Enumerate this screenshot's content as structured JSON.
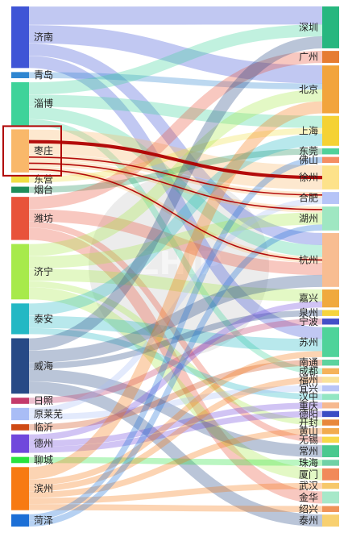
{
  "colors": {
    "highlight_link": "#b00000",
    "highlight_box": "#b00000",
    "watermark": "#b9b9b9"
  },
  "watermark": {
    "text": "ZHIP"
  },
  "sources": [
    {
      "name": "济南",
      "color": "#3f55d6"
    },
    {
      "name": "青岛",
      "color": "#2e86d1"
    },
    {
      "name": "淄博",
      "color": "#3fd39a"
    },
    {
      "name": "枣庄",
      "color": "#f9b86a"
    },
    {
      "name": "东营",
      "color": "#f0df44"
    },
    {
      "name": "烟台",
      "color": "#1e8e5a"
    },
    {
      "name": "潍坊",
      "color": "#e8533a"
    },
    {
      "name": "济宁",
      "color": "#a7ea4b"
    },
    {
      "name": "泰安",
      "color": "#23b8c4"
    },
    {
      "name": "威海",
      "color": "#274a86"
    },
    {
      "name": "日照",
      "color": "#c43a6b"
    },
    {
      "name": "原莱芜",
      "color": "#a9bdf6"
    },
    {
      "name": "临沂",
      "color": "#cf4a14"
    },
    {
      "name": "德州",
      "color": "#7048dc"
    },
    {
      "name": "聊城",
      "color": "#29e33e"
    },
    {
      "name": "滨州",
      "color": "#f77a12"
    },
    {
      "name": "菏泽",
      "color": "#1c6fd6"
    }
  ],
  "targets": [
    {
      "name": "深圳",
      "color": "#27b77f"
    },
    {
      "name": "广州",
      "color": "#e67c32"
    },
    {
      "name": "北京",
      "color": "#f2a43c"
    },
    {
      "name": "上海",
      "color": "#f5d234"
    },
    {
      "name": "东莞",
      "color": "#4fd19a"
    },
    {
      "name": "佛山",
      "color": "#f48d62"
    },
    {
      "name": "徐州",
      "color": "#fde28a"
    },
    {
      "name": "合肥",
      "color": "#b6c4f7"
    },
    {
      "name": "湖州",
      "color": "#9fe7c2"
    },
    {
      "name": "杭州",
      "color": "#f8bd92"
    },
    {
      "name": "嘉兴",
      "color": "#f0a93e"
    },
    {
      "name": "泉州",
      "color": "#f6d43e"
    },
    {
      "name": "宁波",
      "color": "#4450c8"
    },
    {
      "name": "苏州",
      "color": "#4fd39a"
    },
    {
      "name": "南通",
      "color": "#5dd39e"
    },
    {
      "name": "成都",
      "color": "#f5b35a"
    },
    {
      "name": "福州",
      "color": "#f9e39a"
    },
    {
      "name": "宜兴",
      "color": "#b8c5f7"
    },
    {
      "name": "汉中",
      "color": "#93e6c3"
    },
    {
      "name": "重庆",
      "color": "#f6b990"
    },
    {
      "name": "德阳",
      "color": "#3b4dc4"
    },
    {
      "name": "开封",
      "color": "#e8883a"
    },
    {
      "name": "黄山",
      "color": "#f2ab4e"
    },
    {
      "name": "无锡",
      "color": "#f8d84a"
    },
    {
      "name": "常州",
      "color": "#49c98f"
    },
    {
      "name": "珠海",
      "color": "#6fd1a6"
    },
    {
      "name": "厦门",
      "color": "#f18a5a"
    },
    {
      "name": "武汉",
      "color": "#f6c86a"
    },
    {
      "name": "金华",
      "color": "#a7e8c9"
    },
    {
      "name": "绍兴",
      "color": "#ef9358"
    },
    {
      "name": "泰州",
      "color": "#f8d070"
    }
  ],
  "links": [
    {
      "source": 0,
      "target": 0,
      "value": 3
    },
    {
      "source": 0,
      "target": 2,
      "value": 3
    },
    {
      "source": 0,
      "target": 9,
      "value": 2
    },
    {
      "source": 0,
      "target": 13,
      "value": 2
    },
    {
      "source": 1,
      "target": 2,
      "value": 1
    },
    {
      "source": 2,
      "target": 0,
      "value": 2
    },
    {
      "source": 2,
      "target": 3,
      "value": 2
    },
    {
      "source": 2,
      "target": 9,
      "value": 2
    },
    {
      "source": 2,
      "target": 15,
      "value": 1
    },
    {
      "source": 3,
      "target": 6,
      "value": 4,
      "highlight": true
    },
    {
      "source": 3,
      "target": 7,
      "value": 1,
      "highlight": true
    },
    {
      "source": 3,
      "target": 8,
      "value": 1,
      "highlight": true
    },
    {
      "source": 3,
      "target": 9,
      "value": 1,
      "highlight": true
    },
    {
      "source": 4,
      "target": 3,
      "value": 1
    },
    {
      "source": 5,
      "target": 4,
      "value": 1
    },
    {
      "source": 6,
      "target": 1,
      "value": 2
    },
    {
      "source": 6,
      "target": 9,
      "value": 2
    },
    {
      "source": 6,
      "target": 23,
      "value": 1
    },
    {
      "source": 6,
      "target": 28,
      "value": 2
    },
    {
      "source": 7,
      "target": 2,
      "value": 2
    },
    {
      "source": 7,
      "target": 8,
      "value": 2
    },
    {
      "source": 7,
      "target": 10,
      "value": 2
    },
    {
      "source": 7,
      "target": 21,
      "value": 1
    },
    {
      "source": 7,
      "target": 26,
      "value": 2
    },
    {
      "source": 8,
      "target": 3,
      "value": 2
    },
    {
      "source": 8,
      "target": 13,
      "value": 2
    },
    {
      "source": 8,
      "target": 18,
      "value": 1
    },
    {
      "source": 9,
      "target": 0,
      "value": 2
    },
    {
      "source": 9,
      "target": 9,
      "value": 2
    },
    {
      "source": 9,
      "target": 11,
      "value": 1
    },
    {
      "source": 9,
      "target": 24,
      "value": 2
    },
    {
      "source": 9,
      "target": 30,
      "value": 2
    },
    {
      "source": 10,
      "target": 12,
      "value": 1
    },
    {
      "source": 11,
      "target": 7,
      "value": 1
    },
    {
      "source": 11,
      "target": 17,
      "value": 1
    },
    {
      "source": 12,
      "target": 14,
      "value": 1
    },
    {
      "source": 13,
      "target": 10,
      "value": 1
    },
    {
      "source": 13,
      "target": 19,
      "value": 1
    },
    {
      "source": 13,
      "target": 20,
      "value": 1
    },
    {
      "source": 14,
      "target": 25,
      "value": 1
    },
    {
      "source": 15,
      "target": 2,
      "value": 2
    },
    {
      "source": 15,
      "target": 13,
      "value": 1
    },
    {
      "source": 15,
      "target": 16,
      "value": 1
    },
    {
      "source": 15,
      "target": 22,
      "value": 1
    },
    {
      "source": 15,
      "target": 27,
      "value": 1
    },
    {
      "source": 15,
      "target": 29,
      "value": 1
    },
    {
      "source": 16,
      "target": 5,
      "value": 1
    },
    {
      "source": 16,
      "target": 8,
      "value": 1
    }
  ]
}
